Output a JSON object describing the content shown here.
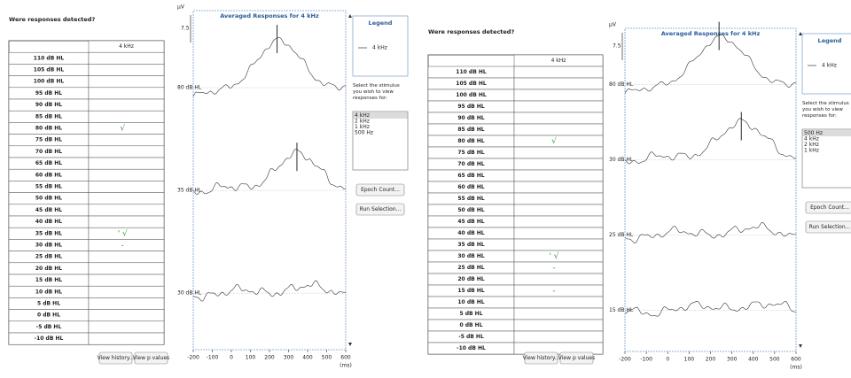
{
  "panels": [
    {
      "question": "Were responses detected?",
      "table": {
        "header": "4 kHz",
        "rows": [
          {
            "level": "110 dB HL"
          },
          {
            "level": "105 dB HL"
          },
          {
            "level": "100 dB HL"
          },
          {
            "level": "95 dB HL"
          },
          {
            "level": "90 dB HL"
          },
          {
            "level": "85 dB HL"
          },
          {
            "level": "80 dB HL",
            "mark": "√"
          },
          {
            "level": "75 dB HL"
          },
          {
            "level": "70 dB HL"
          },
          {
            "level": "65 dB HL"
          },
          {
            "level": "60 dB HL"
          },
          {
            "level": "55 dB HL"
          },
          {
            "level": "50 dB HL"
          },
          {
            "level": "45 dB HL"
          },
          {
            "level": "40 dB HL"
          },
          {
            "level": "35 dB HL",
            "mark": "' √"
          },
          {
            "level": "30 dB HL",
            "mark": "-"
          },
          {
            "level": "25 dB HL"
          },
          {
            "level": "20 dB HL"
          },
          {
            "level": "15 dB HL"
          },
          {
            "level": "10 dB HL"
          },
          {
            "level": "5 dB HL"
          },
          {
            "level": "0 dB HL"
          },
          {
            "level": "-5 dB HL"
          },
          {
            "level": "-10 dB HL"
          }
        ]
      },
      "buttons": [
        "View history...",
        "View p values"
      ],
      "plot": {
        "title": "Averaged Responses for 4 kHz",
        "y_unit": "µV",
        "scale": "7.5",
        "traces": [
          "80 dB HL",
          "35 dB HL",
          "30 dB HL"
        ],
        "xlim": [
          -200,
          600
        ],
        "xticks": [
          -200,
          -100,
          0,
          100,
          200,
          300,
          400,
          500,
          600
        ],
        "x_unit": "(ms)"
      },
      "legend": {
        "title": "Legend",
        "entry": "4 kHz"
      },
      "prompt": "Select the stimulus you wish to view responses for:",
      "stimuli": [
        "4 kHz",
        "2 kHz",
        "1 kHz",
        "500 Hz"
      ],
      "actions": [
        "Epoch Count...",
        "Run Selection..."
      ]
    },
    {
      "question": "Were responses detected?",
      "table": {
        "header": "4 kHz",
        "rows": [
          {
            "level": "110 dB HL"
          },
          {
            "level": "105 dB HL"
          },
          {
            "level": "100 dB HL"
          },
          {
            "level": "95 dB HL"
          },
          {
            "level": "90 dB HL"
          },
          {
            "level": "85 dB HL"
          },
          {
            "level": "80 dB HL",
            "mark": "√"
          },
          {
            "level": "75 dB HL"
          },
          {
            "level": "70 dB HL"
          },
          {
            "level": "65 dB HL"
          },
          {
            "level": "60 dB HL"
          },
          {
            "level": "55 dB HL"
          },
          {
            "level": "50 dB HL"
          },
          {
            "level": "45 dB HL"
          },
          {
            "level": "40 dB HL"
          },
          {
            "level": "35 dB HL"
          },
          {
            "level": "30 dB HL",
            "mark": "' √"
          },
          {
            "level": "25 dB HL",
            "mark": "-"
          },
          {
            "level": "20 dB HL"
          },
          {
            "level": "15 dB HL",
            "mark": "-"
          },
          {
            "level": "10 dB HL"
          },
          {
            "level": "5 dB HL"
          },
          {
            "level": "0 dB HL"
          },
          {
            "level": "-5 dB HL"
          },
          {
            "level": "-10 dB HL"
          }
        ]
      },
      "buttons": [
        "View history...",
        "View p values"
      ],
      "plot": {
        "title": "Averaged Responses for 4 kHz",
        "y_unit": "µV",
        "scale": "7.5",
        "traces": [
          "80 dB HL",
          "30 dB HL",
          "25 dB HL",
          "15 dB HL"
        ],
        "xlim": [
          -200,
          600
        ],
        "xticks": [
          -200,
          -100,
          0,
          100,
          200,
          300,
          400,
          500,
          600
        ],
        "x_unit": "(ms)"
      },
      "legend": {
        "title": "Legend",
        "entry": "4 kHz"
      },
      "prompt": "Select the stimulus you wish to view responses for:",
      "stimuli": [
        "500 Hz",
        "4 kHz",
        "2 kHz",
        "1 kHz"
      ],
      "actions": [
        "Epoch Count...",
        "Run Selection..."
      ]
    }
  ]
}
